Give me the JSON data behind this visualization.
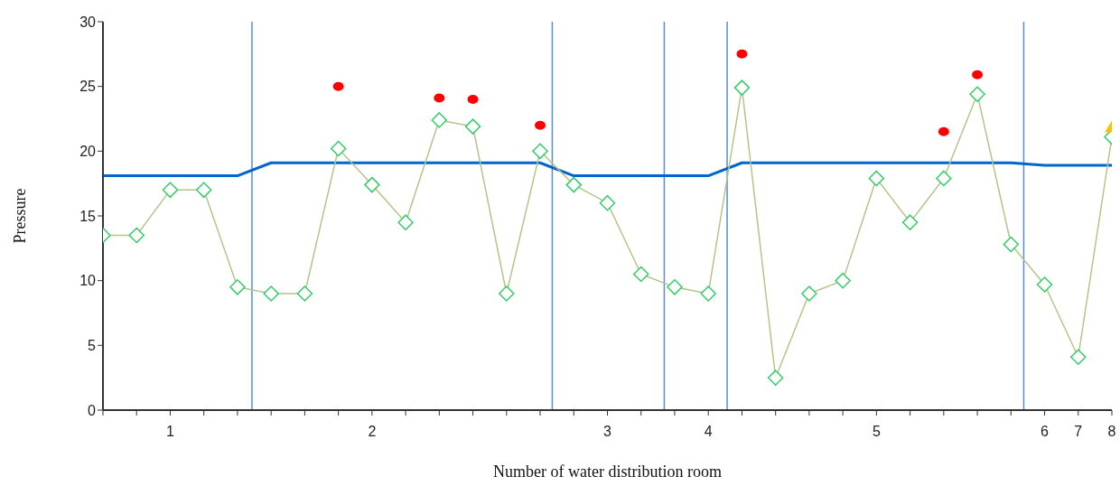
{
  "chart_data": {
    "type": "line",
    "xlabel": "Number of water distribution room",
    "ylabel": "Pressure",
    "categories": [
      null,
      null,
      "1",
      null,
      null,
      null,
      null,
      null,
      "2",
      null,
      null,
      null,
      null,
      null,
      null,
      "3",
      null,
      null,
      "4",
      null,
      null,
      null,
      null,
      "5",
      null,
      null,
      null,
      null,
      "6",
      "7",
      "8"
    ],
    "ylim": [
      0,
      30
    ],
    "yticks": [
      0,
      5,
      10,
      15,
      20,
      25,
      30
    ],
    "grid": false,
    "legend": false,
    "series": [
      {
        "color": "#0066cc",
        "marker": "none",
        "values": [
          18.1,
          18.1,
          18.1,
          18.1,
          18.1,
          19.1,
          19.1,
          19.1,
          19.1,
          19.1,
          19.1,
          19.1,
          19.1,
          19.1,
          18.1,
          18.1,
          18.1,
          18.1,
          18.1,
          19.1,
          19.1,
          19.1,
          19.1,
          19.1,
          19.1,
          19.1,
          19.1,
          19.1,
          18.9,
          18.9,
          18.9
        ]
      },
      {
        "color": "#b5c48a",
        "marker": "diamond",
        "values": [
          13.5,
          13.5,
          17,
          17,
          9.5,
          9,
          9,
          20.2,
          17.4,
          14.5,
          22.4,
          21.9,
          9,
          20,
          17.4,
          16,
          10.5,
          9.5,
          9,
          24.9,
          2.5,
          9,
          10,
          17.9,
          14.5,
          17.9,
          24.4,
          12.8,
          9.7,
          4.1,
          21.1
        ]
      },
      {
        "type": "scatter",
        "color": "#ff0000",
        "marker": "circle",
        "values": [
          null,
          null,
          null,
          null,
          null,
          null,
          null,
          25,
          null,
          null,
          24.1,
          24,
          null,
          22,
          null,
          null,
          null,
          null,
          null,
          27.5,
          null,
          null,
          null,
          null,
          null,
          21.5,
          25.9,
          null,
          null,
          null,
          null
        ]
      },
      {
        "type": "scatter",
        "color": "#ffc000",
        "marker": "triangle",
        "values": [
          null,
          null,
          null,
          null,
          null,
          null,
          null,
          null,
          null,
          null,
          null,
          null,
          null,
          null,
          null,
          null,
          null,
          null,
          null,
          null,
          null,
          null,
          null,
          null,
          null,
          null,
          null,
          null,
          null,
          null,
          21.8
        ]
      }
    ]
  }
}
